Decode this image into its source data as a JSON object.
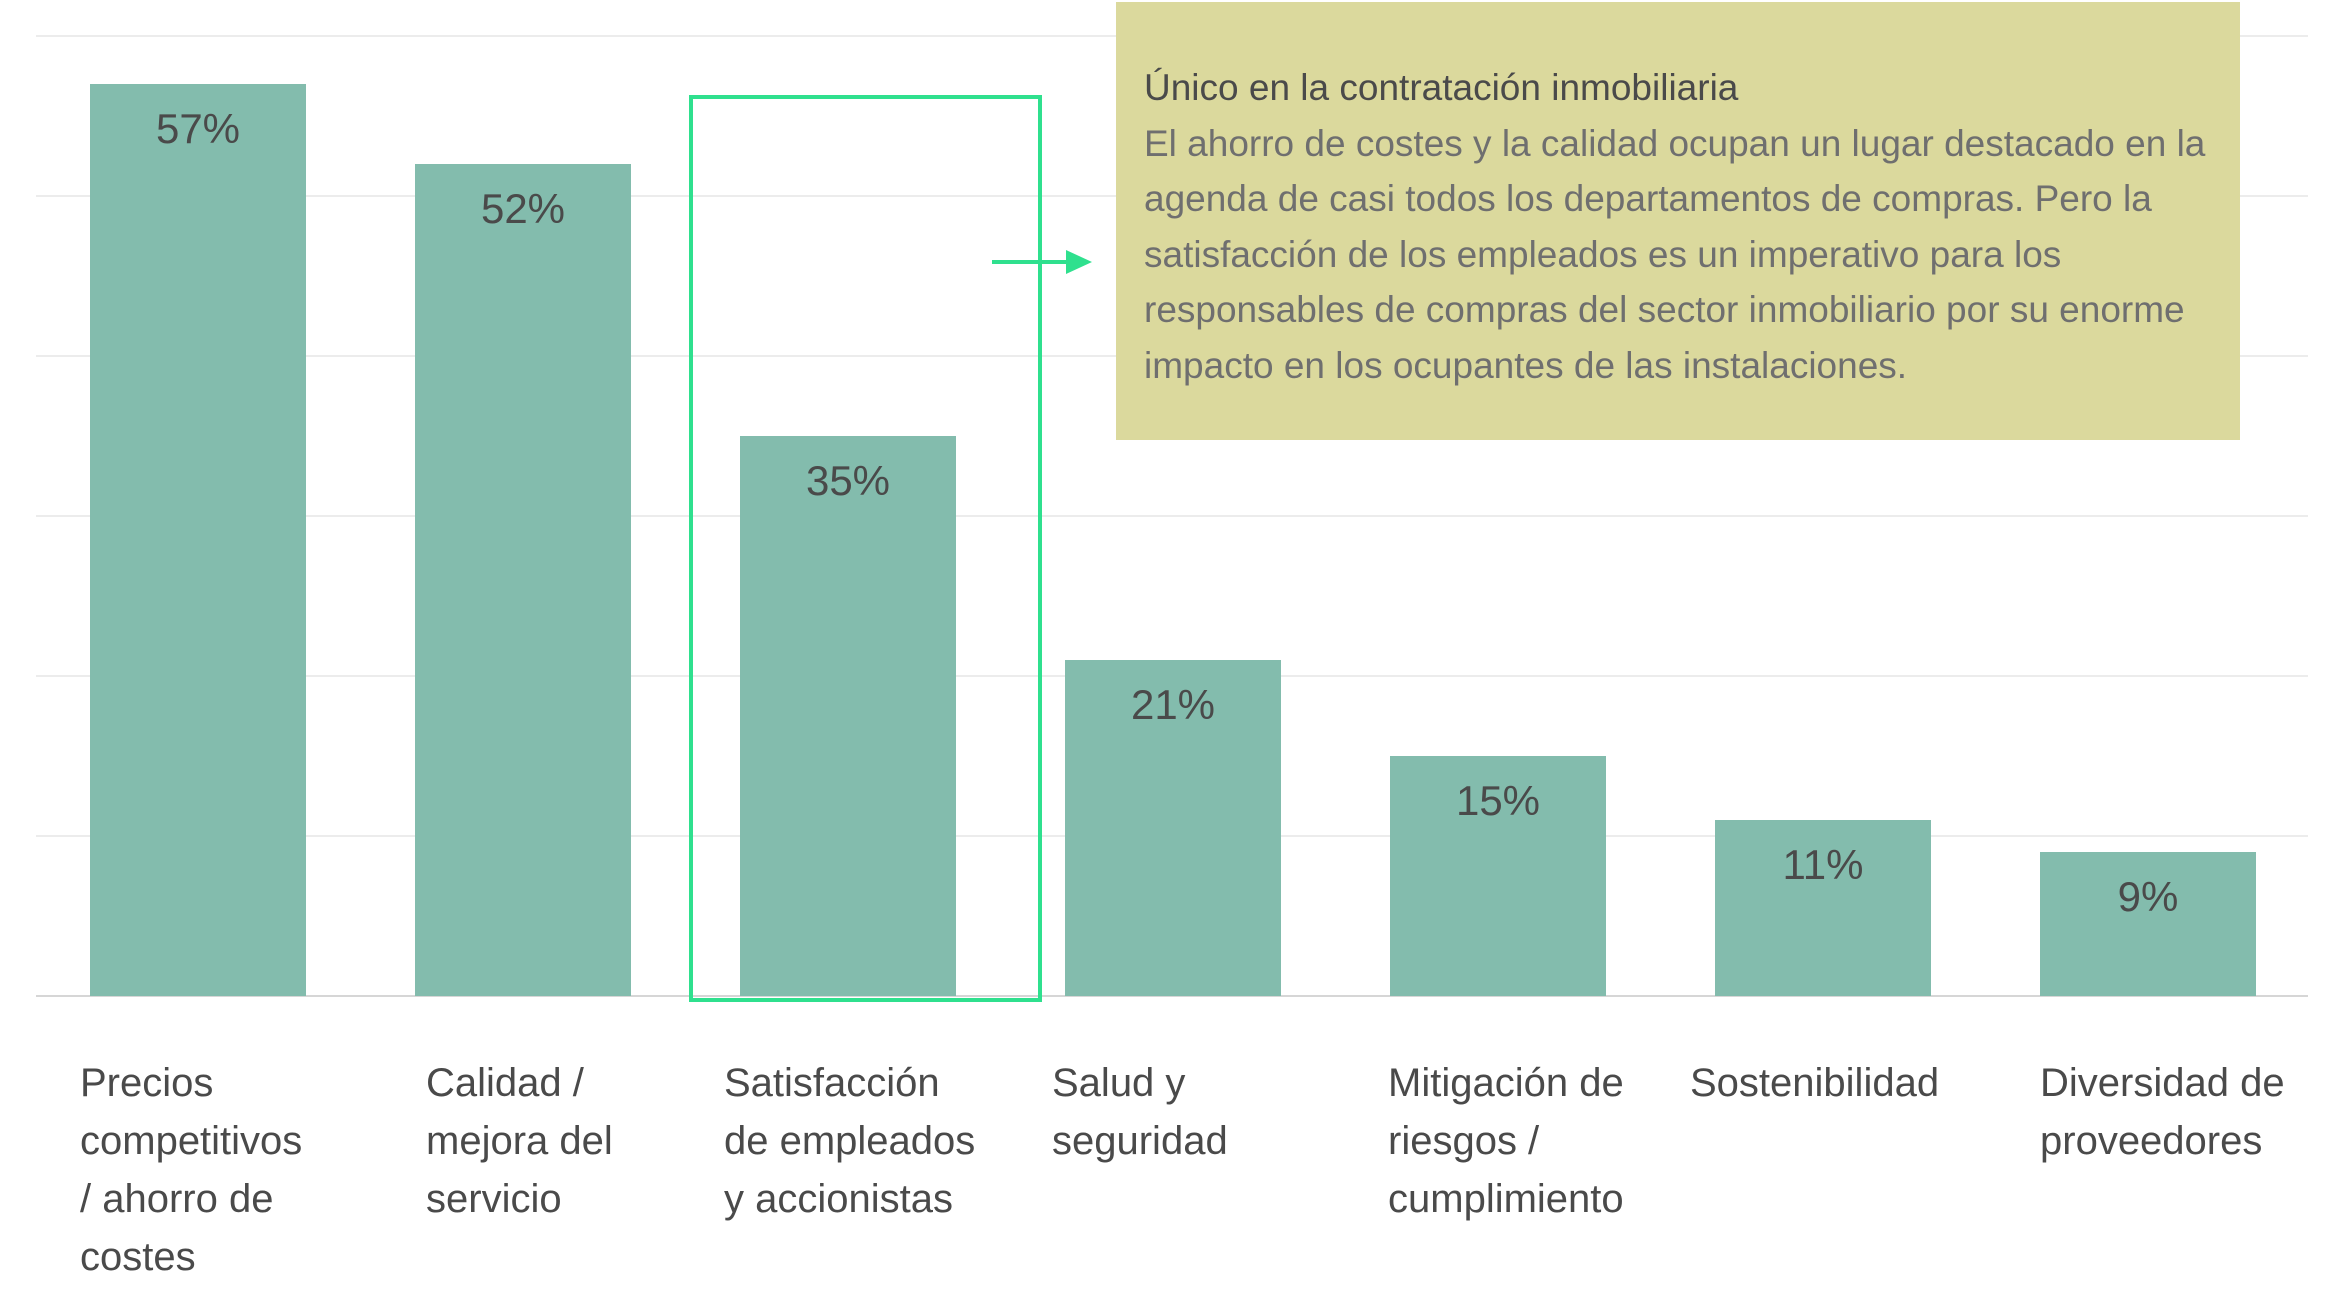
{
  "chart_data": {
    "type": "bar",
    "categories": [
      "Precios\ncompetitivos\n/ ahorro de\ncostes",
      "Calidad /\nmejora del\nservicio",
      "Satisfacción\nde empleados\ny accionistas",
      "Salud y\nseguridad",
      "Mitigación de\nriesgos /\ncumplimiento",
      "Sostenibilidad",
      "Diversidad de\nproveedores"
    ],
    "values": [
      57,
      52,
      35,
      21,
      15,
      11,
      9
    ],
    "value_labels": [
      "57%",
      "52%",
      "35%",
      "21%",
      "15%",
      "11%",
      "9%"
    ],
    "ylim": [
      0,
      60
    ],
    "grid": true,
    "highlighted_category_index": 2,
    "bar_color": "#83bcad",
    "highlight_color": "#2fe08e",
    "annotation": {
      "title": "Único en la contratación inmobiliaria",
      "text": "El ahorro de costes y la calidad ocupan un lugar destacado en la agenda de casi todos los departamentos de compras. Pero la satisfacción de los empleados es un imperativo para los responsables de compras del sector inmobiliario por su enorme impacto en los ocupantes de las instalaciones.",
      "background": "#dbd99d"
    }
  }
}
